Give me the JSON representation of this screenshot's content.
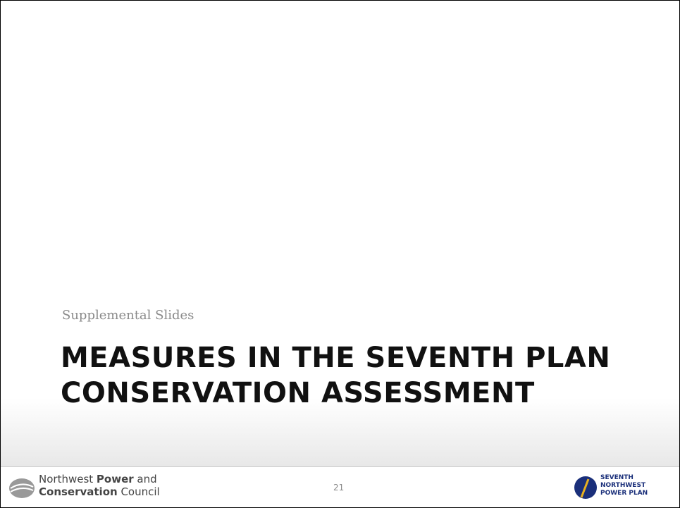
{
  "slide": {
    "subtitle": "Supplemental Slides",
    "title_lines": [
      "MEASURES IN THE SEVENTH PLAN",
      "CONSERVATION ASSESSMENT"
    ],
    "page_number": "21",
    "footer_left": {
      "line1_a": "Northwest ",
      "line1_b": "Power",
      "line1_c": " and",
      "line2_a": "Conservation",
      "line2_b": " Council"
    },
    "footer_right": [
      "SEVENTH",
      "NORTHWEST",
      "POWER PLAN"
    ]
  }
}
